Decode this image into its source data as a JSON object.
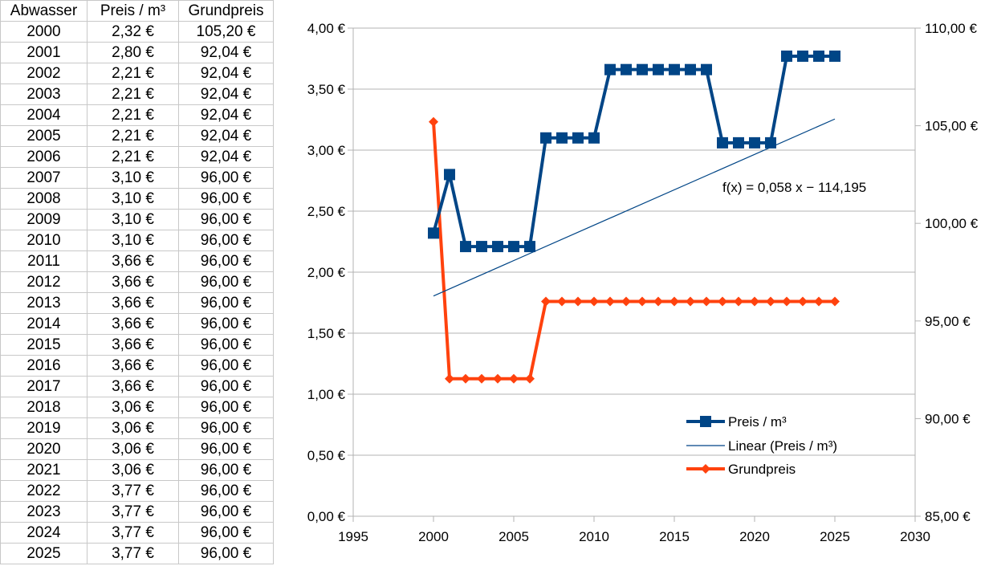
{
  "table": {
    "headers": [
      "Abwasser",
      "Preis / m³",
      "Grundpreis"
    ],
    "rows": [
      [
        "2000",
        "2,32 €",
        "105,20 €"
      ],
      [
        "2001",
        "2,80 €",
        "92,04 €"
      ],
      [
        "2002",
        "2,21 €",
        "92,04 €"
      ],
      [
        "2003",
        "2,21 €",
        "92,04 €"
      ],
      [
        "2004",
        "2,21 €",
        "92,04 €"
      ],
      [
        "2005",
        "2,21 €",
        "92,04 €"
      ],
      [
        "2006",
        "2,21 €",
        "92,04 €"
      ],
      [
        "2007",
        "3,10 €",
        "96,00 €"
      ],
      [
        "2008",
        "3,10 €",
        "96,00 €"
      ],
      [
        "2009",
        "3,10 €",
        "96,00 €"
      ],
      [
        "2010",
        "3,10 €",
        "96,00 €"
      ],
      [
        "2011",
        "3,66 €",
        "96,00 €"
      ],
      [
        "2012",
        "3,66 €",
        "96,00 €"
      ],
      [
        "2013",
        "3,66 €",
        "96,00 €"
      ],
      [
        "2014",
        "3,66 €",
        "96,00 €"
      ],
      [
        "2015",
        "3,66 €",
        "96,00 €"
      ],
      [
        "2016",
        "3,66 €",
        "96,00 €"
      ],
      [
        "2017",
        "3,66 €",
        "96,00 €"
      ],
      [
        "2018",
        "3,06 €",
        "96,00 €"
      ],
      [
        "2019",
        "3,06 €",
        "96,00 €"
      ],
      [
        "2020",
        "3,06 €",
        "96,00 €"
      ],
      [
        "2021",
        "3,06 €",
        "96,00 €"
      ],
      [
        "2022",
        "3,77 €",
        "96,00 €"
      ],
      [
        "2023",
        "3,77 €",
        "96,00 €"
      ],
      [
        "2024",
        "3,77 €",
        "96,00 €"
      ],
      [
        "2025",
        "3,77 €",
        "96,00 €"
      ]
    ]
  },
  "chart_data": {
    "type": "line",
    "x": [
      2000,
      2001,
      2002,
      2003,
      2004,
      2005,
      2006,
      2007,
      2008,
      2009,
      2010,
      2011,
      2012,
      2013,
      2014,
      2015,
      2016,
      2017,
      2018,
      2019,
      2020,
      2021,
      2022,
      2023,
      2024,
      2025
    ],
    "series": [
      {
        "name": "Preis / m³",
        "axis": "left",
        "marker": "square",
        "color": "#004586",
        "values": [
          2.32,
          2.8,
          2.21,
          2.21,
          2.21,
          2.21,
          2.21,
          3.1,
          3.1,
          3.1,
          3.1,
          3.66,
          3.66,
          3.66,
          3.66,
          3.66,
          3.66,
          3.66,
          3.06,
          3.06,
          3.06,
          3.06,
          3.77,
          3.77,
          3.77,
          3.77
        ]
      },
      {
        "name": "Grundpreis",
        "axis": "right",
        "marker": "diamond",
        "color": "#ff420e",
        "values": [
          105.2,
          92.04,
          92.04,
          92.04,
          92.04,
          92.04,
          92.04,
          96.0,
          96.0,
          96.0,
          96.0,
          96.0,
          96.0,
          96.0,
          96.0,
          96.0,
          96.0,
          96.0,
          96.0,
          96.0,
          96.0,
          96.0,
          96.0,
          96.0,
          96.0,
          96.0
        ]
      }
    ],
    "trendline": {
      "name": "Linear (Preis / m³)",
      "of": "Preis / m³",
      "slope": 0.058,
      "intercept": -114.195,
      "equation": "f(x) = 0,058 x − 114,195",
      "color": "#004586"
    },
    "xlim": [
      1995,
      2030
    ],
    "xticks": [
      1995,
      2000,
      2005,
      2010,
      2015,
      2020,
      2025,
      2030
    ],
    "xtick_labels": [
      "1995",
      "2000",
      "2005",
      "2010",
      "2015",
      "2020",
      "2025",
      "2030"
    ],
    "ylim": [
      0,
      4
    ],
    "yticks": [
      0,
      0.5,
      1,
      1.5,
      2,
      2.5,
      3,
      3.5,
      4
    ],
    "ytick_labels": [
      "0,00 €",
      "0,50 €",
      "1,00 €",
      "1,50 €",
      "2,00 €",
      "2,50 €",
      "3,00 €",
      "3,50 €",
      "4,00 €"
    ],
    "y2lim": [
      85,
      110
    ],
    "y2ticks": [
      85,
      90,
      95,
      100,
      105,
      110
    ],
    "y2tick_labels": [
      "85,00 €",
      "90,00 €",
      "95,00 €",
      "100,00 €",
      "105,00 €",
      "110,00 €"
    ],
    "legend": [
      "Preis / m³",
      "Linear (Preis / m³)",
      "Grundpreis"
    ],
    "legend_position": "bottom-right",
    "grid": true,
    "title": "",
    "xlabel": "",
    "ylabel": ""
  }
}
